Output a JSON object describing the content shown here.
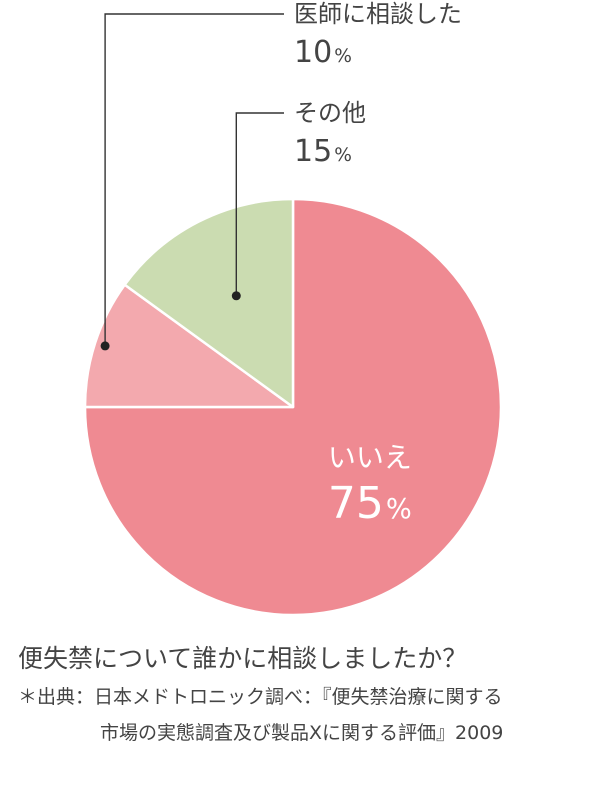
{
  "chart_data": {
    "type": "pie",
    "categories": [
      "いいえ",
      "医師に相談した",
      "その他"
    ],
    "values": [
      75,
      10,
      15
    ],
    "unit": "%",
    "colors": [
      "#ef8a92",
      "#f3a9ae",
      "#cbdcb1"
    ]
  },
  "question": "便失禁について誰かに相談しましたか？",
  "source_line1": "＊出典：日本メドトロニック調べ：『便失禁治療に関する",
  "source_line2": "市場の実態調査及び製品Xに関する評価』2009"
}
